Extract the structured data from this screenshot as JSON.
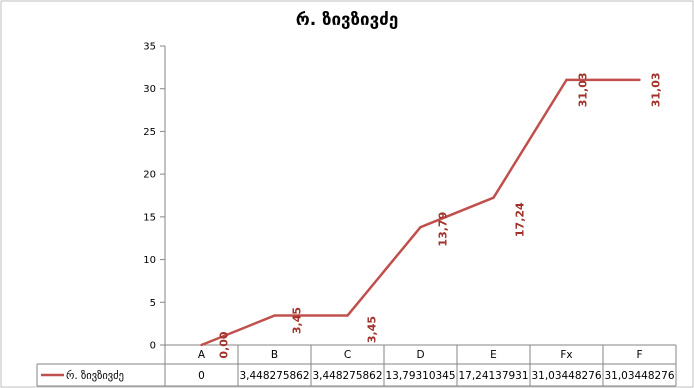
{
  "chart_data": {
    "type": "line",
    "title": "რ. ზივზივძე",
    "xlabel": "",
    "ylabel": "",
    "categories": [
      "A",
      "B",
      "C",
      "D",
      "E",
      "Fx",
      "F"
    ],
    "series": [
      {
        "name": "რ. ზივზივძე",
        "values": [
          0,
          3.448275862,
          3.448275862,
          13.79310345,
          17.24137931,
          31.03448276,
          31.03448276
        ],
        "data_labels": [
          "0,00",
          "3,45",
          "3,45",
          "13,79",
          "17,24",
          "31,03",
          "31,03"
        ],
        "table_values": [
          "0",
          "3,448275862",
          "3,448275862",
          "13,79310345",
          "17,24137931",
          "31,03448276",
          "31,03448276"
        ],
        "color": "#c0504d"
      }
    ],
    "ylim": [
      0,
      35
    ],
    "yticks": [
      0,
      5,
      10,
      15,
      20,
      25,
      30,
      35
    ],
    "grid": false,
    "legend": "data-table-row"
  }
}
